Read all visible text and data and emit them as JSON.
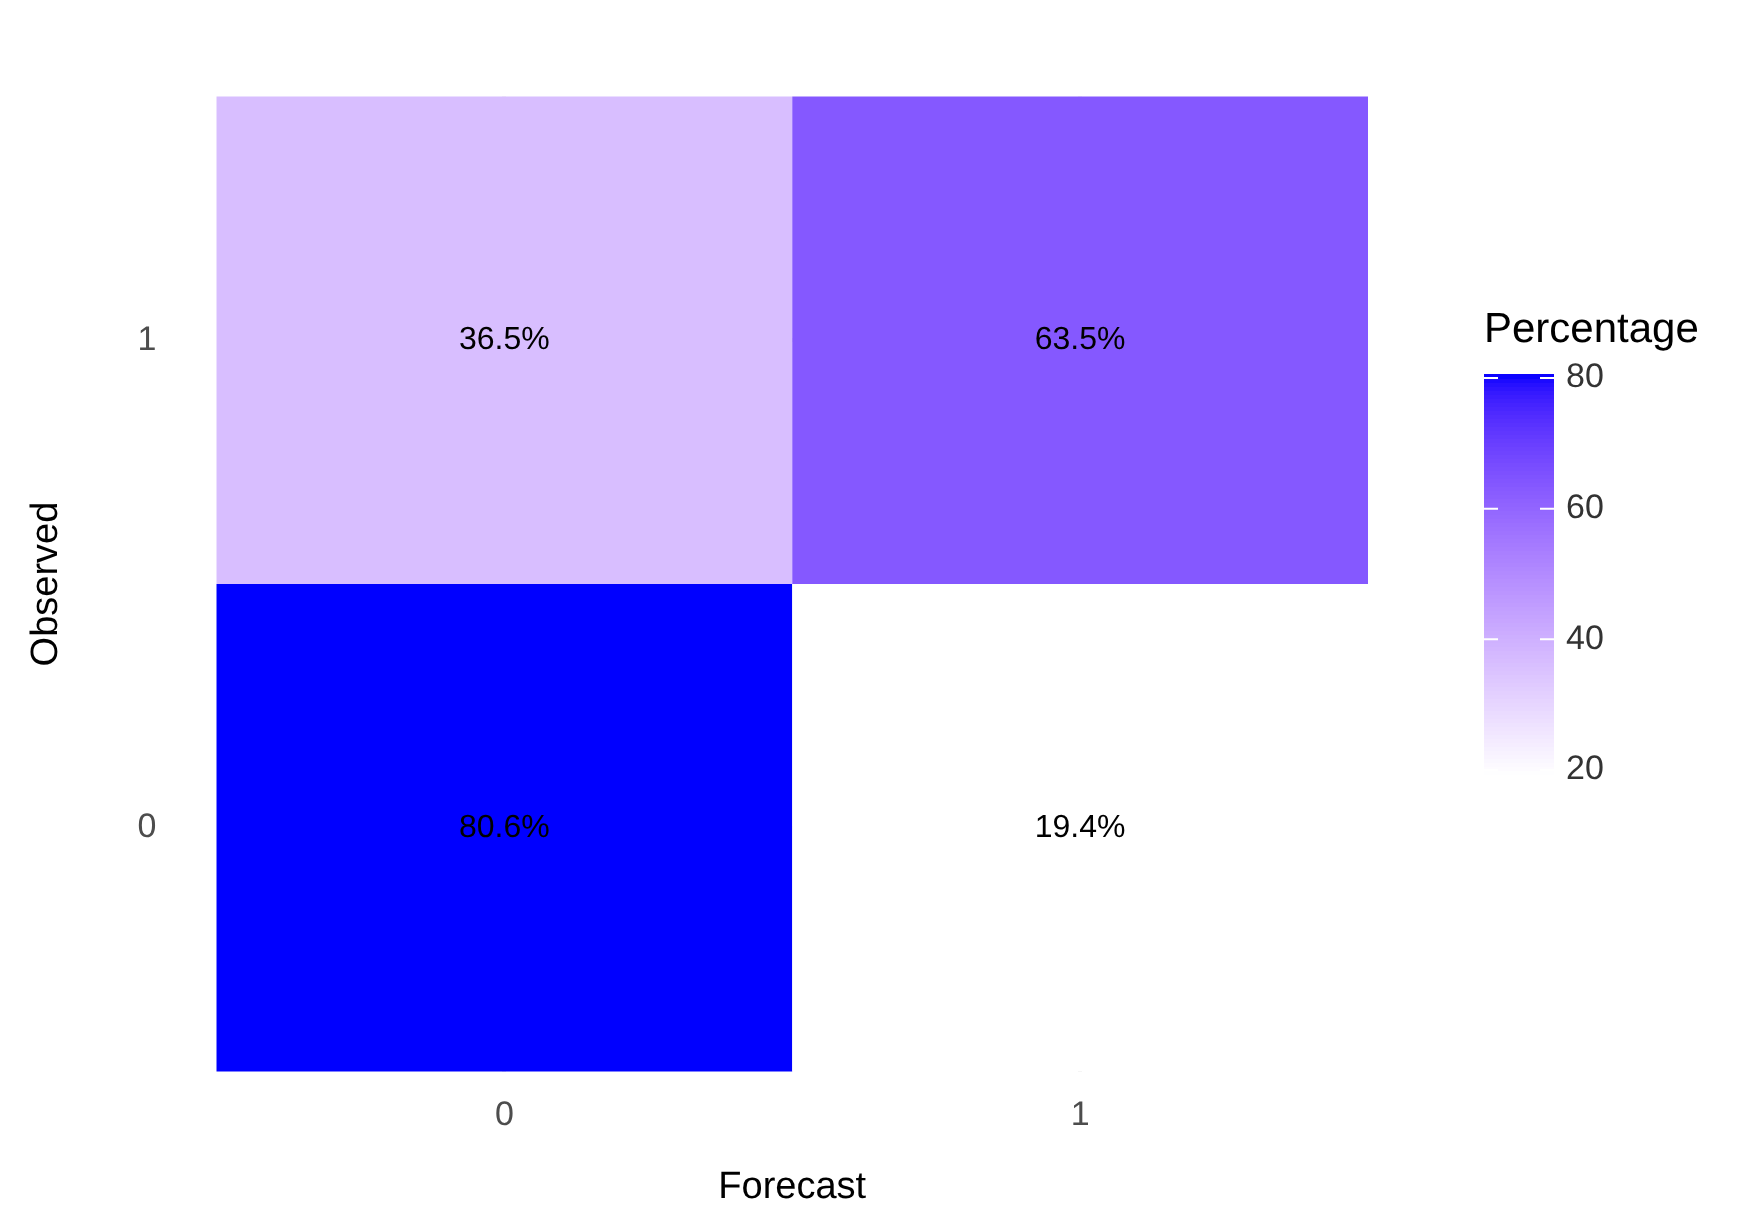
{
  "chart_data": {
    "type": "heatmap",
    "xlabel": "Forecast",
    "ylabel": "Observed",
    "clabel": "Percentage",
    "categories": [
      "0",
      "1"
    ],
    "y_categories": [
      "1",
      "0"
    ],
    "cells": [
      [
        36.5,
        63.5
      ],
      [
        80.6,
        19.4
      ]
    ],
    "cell_labels": [
      [
        "36.5%",
        "63.5%"
      ],
      [
        "80.6%",
        "19.4%"
      ]
    ],
    "clim": [
      19.4,
      80.6
    ],
    "cticks": [
      20,
      40,
      60,
      80
    ],
    "colors": [
      "#ffffff",
      "#0000ff"
    ],
    "grid": true
  }
}
